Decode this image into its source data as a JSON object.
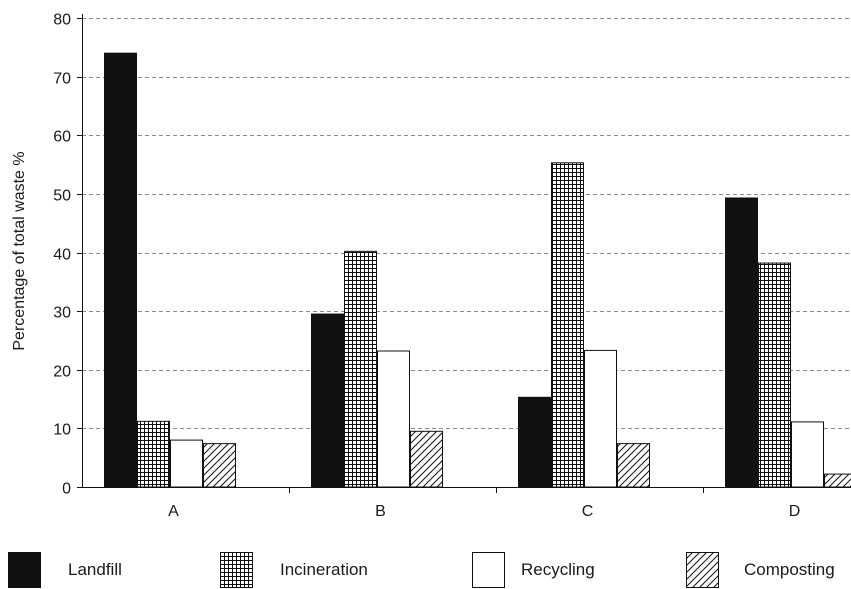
{
  "chart_data": {
    "type": "bar",
    "categories": [
      "A",
      "B",
      "C",
      "D"
    ],
    "series": [
      {
        "name": "Landfill",
        "values": [
          74,
          29.5,
          15.3,
          49.3
        ],
        "pattern": "solid"
      },
      {
        "name": "Incineration",
        "values": [
          11.2,
          40.2,
          55.3,
          38.2
        ],
        "pattern": "grid"
      },
      {
        "name": "Recycling",
        "values": [
          8,
          23.2,
          23.3,
          11.1
        ],
        "pattern": "empty"
      },
      {
        "name": "Composting",
        "values": [
          7.4,
          9.5,
          7.4,
          2.2
        ],
        "pattern": "hatch"
      }
    ],
    "title": "",
    "xlabel": "",
    "ylabel": "Percentage of total waste %",
    "ylim": [
      0,
      80
    ],
    "yticks": [
      "0",
      "10",
      "20",
      "30",
      "40",
      "50",
      "60",
      "70",
      "80"
    ],
    "grid": true,
    "legend_position": "bottom"
  },
  "colors": {
    "landfill": "#111111",
    "outline": "#111111",
    "grid": "#8a8a8a"
  }
}
